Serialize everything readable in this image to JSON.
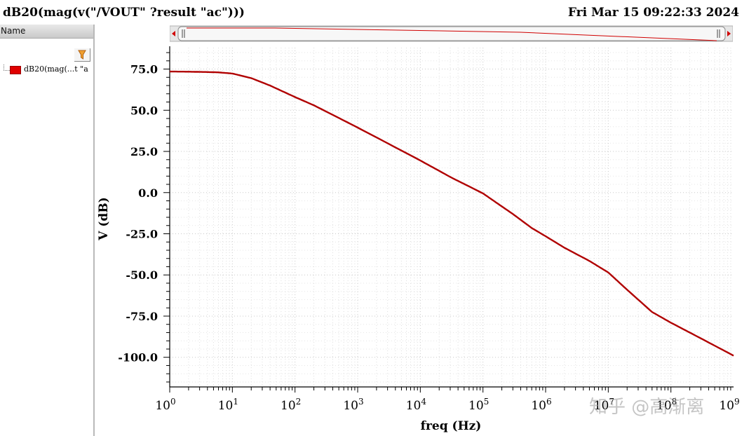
{
  "header": {
    "title": "dB20(mag(v(\"/VOUT\" ?result \"ac\")))",
    "timestamp": "Fri Mar 15 09:22:33 2024"
  },
  "sidebar": {
    "column_header": "Name",
    "legend_item": "dB20(mag(...t \"a",
    "legend_color": "#e00000"
  },
  "watermark": "知乎 @高渐离",
  "chart_data": {
    "type": "line",
    "x_scale": "log",
    "xlim": [
      1,
      1000000000
    ],
    "ylim": [
      -118,
      88
    ],
    "xlabel": "freq (Hz)",
    "ylabel": "V (dB)",
    "x_ticks": [
      {
        "exp": 0,
        "base": "10",
        "sup": "0"
      },
      {
        "exp": 1,
        "base": "10",
        "sup": "1"
      },
      {
        "exp": 2,
        "base": "10",
        "sup": "2"
      },
      {
        "exp": 3,
        "base": "10",
        "sup": "3"
      },
      {
        "exp": 4,
        "base": "10",
        "sup": "4"
      },
      {
        "exp": 5,
        "base": "10",
        "sup": "5"
      },
      {
        "exp": 6,
        "base": "10",
        "sup": "6"
      },
      {
        "exp": 7,
        "base": "10",
        "sup": "7"
      },
      {
        "exp": 8,
        "base": "10",
        "sup": "8"
      },
      {
        "exp": 9,
        "base": "10",
        "sup": "9"
      }
    ],
    "y_ticks": [
      {
        "value": 75,
        "label": "75.0"
      },
      {
        "value": 50,
        "label": "50.0"
      },
      {
        "value": 25,
        "label": "25.0"
      },
      {
        "value": 0,
        "label": "0.0"
      },
      {
        "value": -25,
        "label": "-25.0"
      },
      {
        "value": -50,
        "label": "-50.0"
      },
      {
        "value": -75,
        "label": "-75.0"
      },
      {
        "value": -100,
        "label": "-100.0"
      }
    ],
    "grid": true,
    "series": [
      {
        "color": "#b00000",
        "x": [
          1,
          2,
          4,
          6,
          10,
          20,
          40,
          100,
          200,
          1000,
          10000,
          30000,
          100000,
          300000,
          600000,
          1000000,
          2000000,
          5000000,
          10000000,
          20000000,
          50000000,
          100000000,
          300000000,
          1000000000
        ],
        "y": [
          73.5,
          73.4,
          73.2,
          73.0,
          72.3,
          69.5,
          65.0,
          58.0,
          53.0,
          39.5,
          19.5,
          9.5,
          -0.5,
          -13.0,
          -21.5,
          -26.5,
          -33.5,
          -41.5,
          -48.5,
          -59.0,
          -72.5,
          -79.0,
          -88.5,
          -99.0
        ]
      }
    ]
  }
}
